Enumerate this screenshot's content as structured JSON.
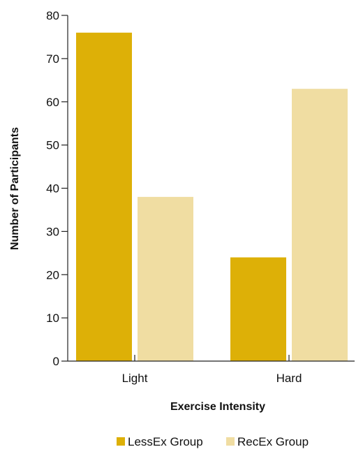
{
  "chart_data": {
    "type": "bar",
    "categories": [
      "Light",
      "Hard"
    ],
    "series": [
      {
        "name": "LessEx Group",
        "values": [
          76,
          24
        ],
        "color": "#DDB007"
      },
      {
        "name": "RecEx Group",
        "values": [
          38,
          63
        ],
        "color": "#F0DDA2"
      }
    ],
    "xlabel": "Exercise Intensity",
    "ylabel": "Number of Participants",
    "ylim": [
      0,
      80
    ],
    "yticks": [
      0,
      10,
      20,
      30,
      40,
      50,
      60,
      70,
      80
    ],
    "grid": false,
    "legend_position": "bottom-center"
  },
  "colors": {
    "axis": "#222222",
    "text": "#111111"
  }
}
